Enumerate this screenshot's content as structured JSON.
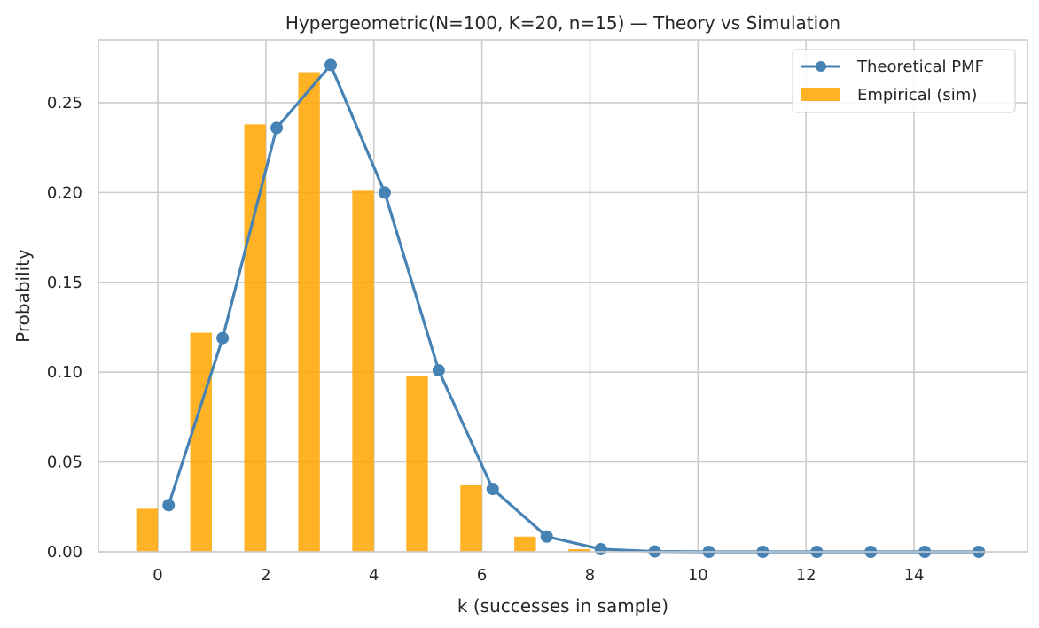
{
  "chart_data": {
    "type": "bar",
    "title": "Hypergeometric(N=100, K=20, n=15) — Theory vs Simulation",
    "xlabel": "k (successes in sample)",
    "ylabel": "Probability",
    "xlim": [
      -1.1,
      16.1
    ],
    "ylim": [
      0,
      0.285
    ],
    "xticks": [
      0,
      2,
      4,
      6,
      8,
      10,
      12,
      14
    ],
    "yticks": [
      0.0,
      0.05,
      0.1,
      0.15,
      0.2,
      0.25
    ],
    "grid": true,
    "legend_position": "top-right",
    "colors": {
      "theoretical": "#4682b4",
      "empirical": "#ffa500",
      "grid": "#cccccc",
      "frame": "#cccccc"
    },
    "series": [
      {
        "name": "Theoretical PMF",
        "type": "line",
        "marker": "circle",
        "x": [
          0.2,
          1.2,
          2.2,
          3.2,
          4.2,
          5.2,
          6.2,
          7.2,
          8.2,
          9.2,
          10.2,
          11.2,
          12.2,
          13.2,
          14.2,
          15.2
        ],
        "values": [
          0.026,
          0.119,
          0.236,
          0.271,
          0.2,
          0.101,
          0.035,
          0.0085,
          0.0015,
          0.0002,
          0.0,
          0.0,
          0.0,
          0.0,
          0.0,
          0.0
        ]
      },
      {
        "name": "Empirical (sim)",
        "type": "bar",
        "x": [
          -0.2,
          0.8,
          1.8,
          2.8,
          3.8,
          4.8,
          5.8,
          6.8,
          7.8
        ],
        "values": [
          0.024,
          0.122,
          0.238,
          0.267,
          0.201,
          0.098,
          0.037,
          0.0085,
          0.0015
        ]
      }
    ]
  }
}
